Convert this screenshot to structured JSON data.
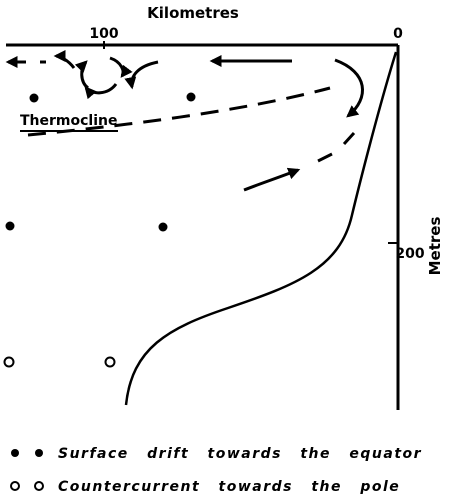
{
  "axes": {
    "x_title": "Kilometres",
    "y_title": "Metres",
    "x_ticks": [
      "100",
      "0"
    ],
    "y_ticks": [
      "200"
    ]
  },
  "labels": {
    "thermocline": "Thermocline"
  },
  "legend": {
    "surface_drift": "Surface drift towards the equator",
    "countercurrent": "Countercurrent towards the pole"
  },
  "colors": {
    "ink": "#000000",
    "background": "#ffffff"
  }
}
